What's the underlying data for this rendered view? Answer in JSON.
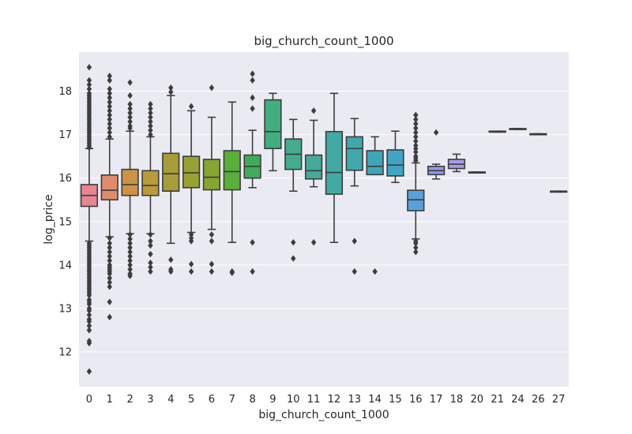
{
  "chart_data": {
    "type": "box",
    "title": "big_church_count_1000",
    "xlabel": "big_church_count_1000",
    "ylabel": "log_price",
    "ylim": [
      11.2,
      18.9
    ],
    "yticks": [
      12,
      13,
      14,
      15,
      16,
      17,
      18
    ],
    "grid": true,
    "categories": [
      "0",
      "1",
      "2",
      "3",
      "4",
      "5",
      "6",
      "7",
      "8",
      "9",
      "10",
      "11",
      "12",
      "13",
      "14",
      "15",
      "16",
      "17",
      "18",
      "20",
      "21",
      "24",
      "26",
      "27"
    ],
    "colors": [
      "#e8858f",
      "#de8c6b",
      "#cc9246",
      "#b99b3a",
      "#a89c38",
      "#9aa133",
      "#86a634",
      "#5aae3a",
      "#3fac5b",
      "#42ad7e",
      "#44ab8f",
      "#45aa9a",
      "#43a9a4",
      "#40a7ad",
      "#3fa6b7",
      "#40a4c4",
      "#5aa0dc",
      "#8c9ce6",
      "#a99be9",
      "#c391e6",
      "#d685da",
      "#e582c8",
      "#e884b6",
      "#e884a5"
    ],
    "boxes": [
      {
        "q1": 15.35,
        "median": 15.6,
        "q3": 15.85,
        "whislo": 14.55,
        "whishi": 16.68,
        "fliers": [
          18.55,
          18.25,
          18.15,
          18.05,
          17.95,
          17.9,
          17.85,
          17.8,
          17.75,
          17.7,
          17.65,
          17.6,
          17.55,
          17.5,
          17.45,
          17.4,
          17.35,
          17.3,
          17.25,
          17.2,
          17.15,
          17.1,
          17.05,
          17.0,
          16.95,
          16.9,
          16.85,
          16.8,
          16.75,
          16.7,
          14.5,
          14.45,
          14.4,
          14.35,
          14.3,
          14.25,
          14.2,
          14.15,
          14.1,
          14.05,
          14.0,
          13.95,
          13.9,
          13.85,
          13.8,
          13.75,
          13.7,
          13.65,
          13.6,
          13.55,
          13.5,
          13.45,
          13.4,
          13.35,
          13.3,
          13.2,
          13.15,
          13.1,
          13.0,
          12.95,
          12.85,
          12.75,
          12.7,
          12.6,
          12.5,
          12.25,
          12.2,
          11.55
        ]
      },
      {
        "q1": 15.5,
        "median": 15.72,
        "q3": 16.07,
        "whislo": 14.65,
        "whishi": 16.9,
        "fliers": [
          18.35,
          18.25,
          18.05,
          17.95,
          17.85,
          17.75,
          17.65,
          17.55,
          17.45,
          17.35,
          17.25,
          17.15,
          17.05,
          16.95,
          14.62,
          14.5,
          14.4,
          14.3,
          14.2,
          14.1,
          14.0,
          13.95,
          13.9,
          13.85,
          13.8,
          13.7,
          13.6,
          13.5,
          13.15,
          12.8
        ]
      },
      {
        "q1": 15.6,
        "median": 15.85,
        "q3": 16.2,
        "whislo": 14.72,
        "whishi": 17.08,
        "fliers": [
          18.2,
          17.9,
          17.7,
          17.6,
          17.5,
          17.4,
          17.3,
          17.2,
          17.15,
          14.7,
          14.6,
          14.5,
          14.4,
          14.3,
          14.2,
          14.1,
          14.0,
          13.9,
          13.8,
          13.75
        ]
      },
      {
        "q1": 15.6,
        "median": 15.83,
        "q3": 16.17,
        "whislo": 14.72,
        "whishi": 16.95,
        "fliers": [
          17.7,
          17.6,
          17.5,
          17.4,
          17.3,
          17.2,
          17.1,
          17.0,
          14.7,
          14.55,
          14.45,
          14.25,
          14.05,
          13.95,
          13.85
        ]
      },
      {
        "q1": 15.7,
        "median": 16.1,
        "q3": 16.57,
        "whislo": 14.5,
        "whishi": 17.9,
        "fliers": [
          18.08,
          17.98,
          14.12,
          13.9,
          13.85
        ]
      },
      {
        "q1": 15.78,
        "median": 16.12,
        "q3": 16.5,
        "whislo": 14.75,
        "whishi": 17.55,
        "fliers": [
          17.65,
          14.7,
          14.62,
          14.55,
          14.02,
          13.85
        ]
      },
      {
        "q1": 15.73,
        "median": 16.02,
        "q3": 16.43,
        "whislo": 14.82,
        "whishi": 17.4,
        "fliers": [
          18.08,
          14.7,
          14.55,
          14.02,
          13.85
        ]
      },
      {
        "q1": 15.73,
        "median": 16.15,
        "q3": 16.63,
        "whislo": 14.52,
        "whishi": 17.75,
        "fliers": [
          13.85,
          13.82
        ]
      },
      {
        "q1": 16.0,
        "median": 16.27,
        "q3": 16.53,
        "whislo": 15.78,
        "whishi": 17.1,
        "fliers": [
          18.4,
          18.25,
          17.85,
          17.6,
          14.52,
          13.85
        ]
      },
      {
        "q1": 16.68,
        "median": 17.07,
        "q3": 17.8,
        "whislo": 16.17,
        "whishi": 17.95,
        "fliers": []
      },
      {
        "q1": 16.2,
        "median": 16.55,
        "q3": 16.9,
        "whislo": 15.7,
        "whishi": 17.35,
        "fliers": [
          14.52,
          14.15
        ]
      },
      {
        "q1": 15.98,
        "median": 16.17,
        "q3": 16.53,
        "whislo": 15.8,
        "whishi": 17.33,
        "fliers": [
          17.55,
          14.52
        ]
      },
      {
        "q1": 15.63,
        "median": 16.13,
        "q3": 17.07,
        "whislo": 14.52,
        "whishi": 17.95,
        "fliers": []
      },
      {
        "q1": 16.18,
        "median": 16.68,
        "q3": 16.95,
        "whislo": 15.82,
        "whishi": 17.37,
        "fliers": [
          14.55,
          13.85
        ]
      },
      {
        "q1": 16.08,
        "median": 16.27,
        "q3": 16.63,
        "whislo": 16.08,
        "whishi": 16.95,
        "fliers": [
          13.85
        ]
      },
      {
        "q1": 16.05,
        "median": 16.3,
        "q3": 16.65,
        "whislo": 15.9,
        "whishi": 17.08,
        "fliers": []
      },
      {
        "q1": 15.25,
        "median": 15.5,
        "q3": 15.72,
        "whislo": 14.6,
        "whishi": 16.35,
        "fliers": [
          17.45,
          17.35,
          17.25,
          17.15,
          17.05,
          16.95,
          16.85,
          16.75,
          16.68,
          16.6,
          16.5,
          16.45,
          16.4,
          14.55,
          14.5,
          14.4,
          14.3
        ]
      },
      {
        "q1": 16.08,
        "median": 16.17,
        "q3": 16.27,
        "whislo": 15.98,
        "whishi": 16.32,
        "fliers": [
          17.05
        ]
      },
      {
        "q1": 16.22,
        "median": 16.32,
        "q3": 16.43,
        "whislo": 16.15,
        "whishi": 16.55,
        "fliers": []
      },
      {
        "q1": 16.12,
        "median": 16.13,
        "q3": 16.14,
        "whislo": 16.12,
        "whishi": 16.14,
        "fliers": []
      },
      {
        "q1": 17.06,
        "median": 17.07,
        "q3": 17.08,
        "whislo": 17.06,
        "whishi": 17.08,
        "fliers": []
      },
      {
        "q1": 17.12,
        "median": 17.13,
        "q3": 17.14,
        "whislo": 17.12,
        "whishi": 17.14,
        "fliers": []
      },
      {
        "q1": 17.0,
        "median": 17.01,
        "q3": 17.02,
        "whislo": 17.0,
        "whishi": 17.02,
        "fliers": []
      },
      {
        "q1": 15.68,
        "median": 15.69,
        "q3": 15.7,
        "whislo": 15.68,
        "whishi": 15.7,
        "fliers": []
      }
    ]
  }
}
